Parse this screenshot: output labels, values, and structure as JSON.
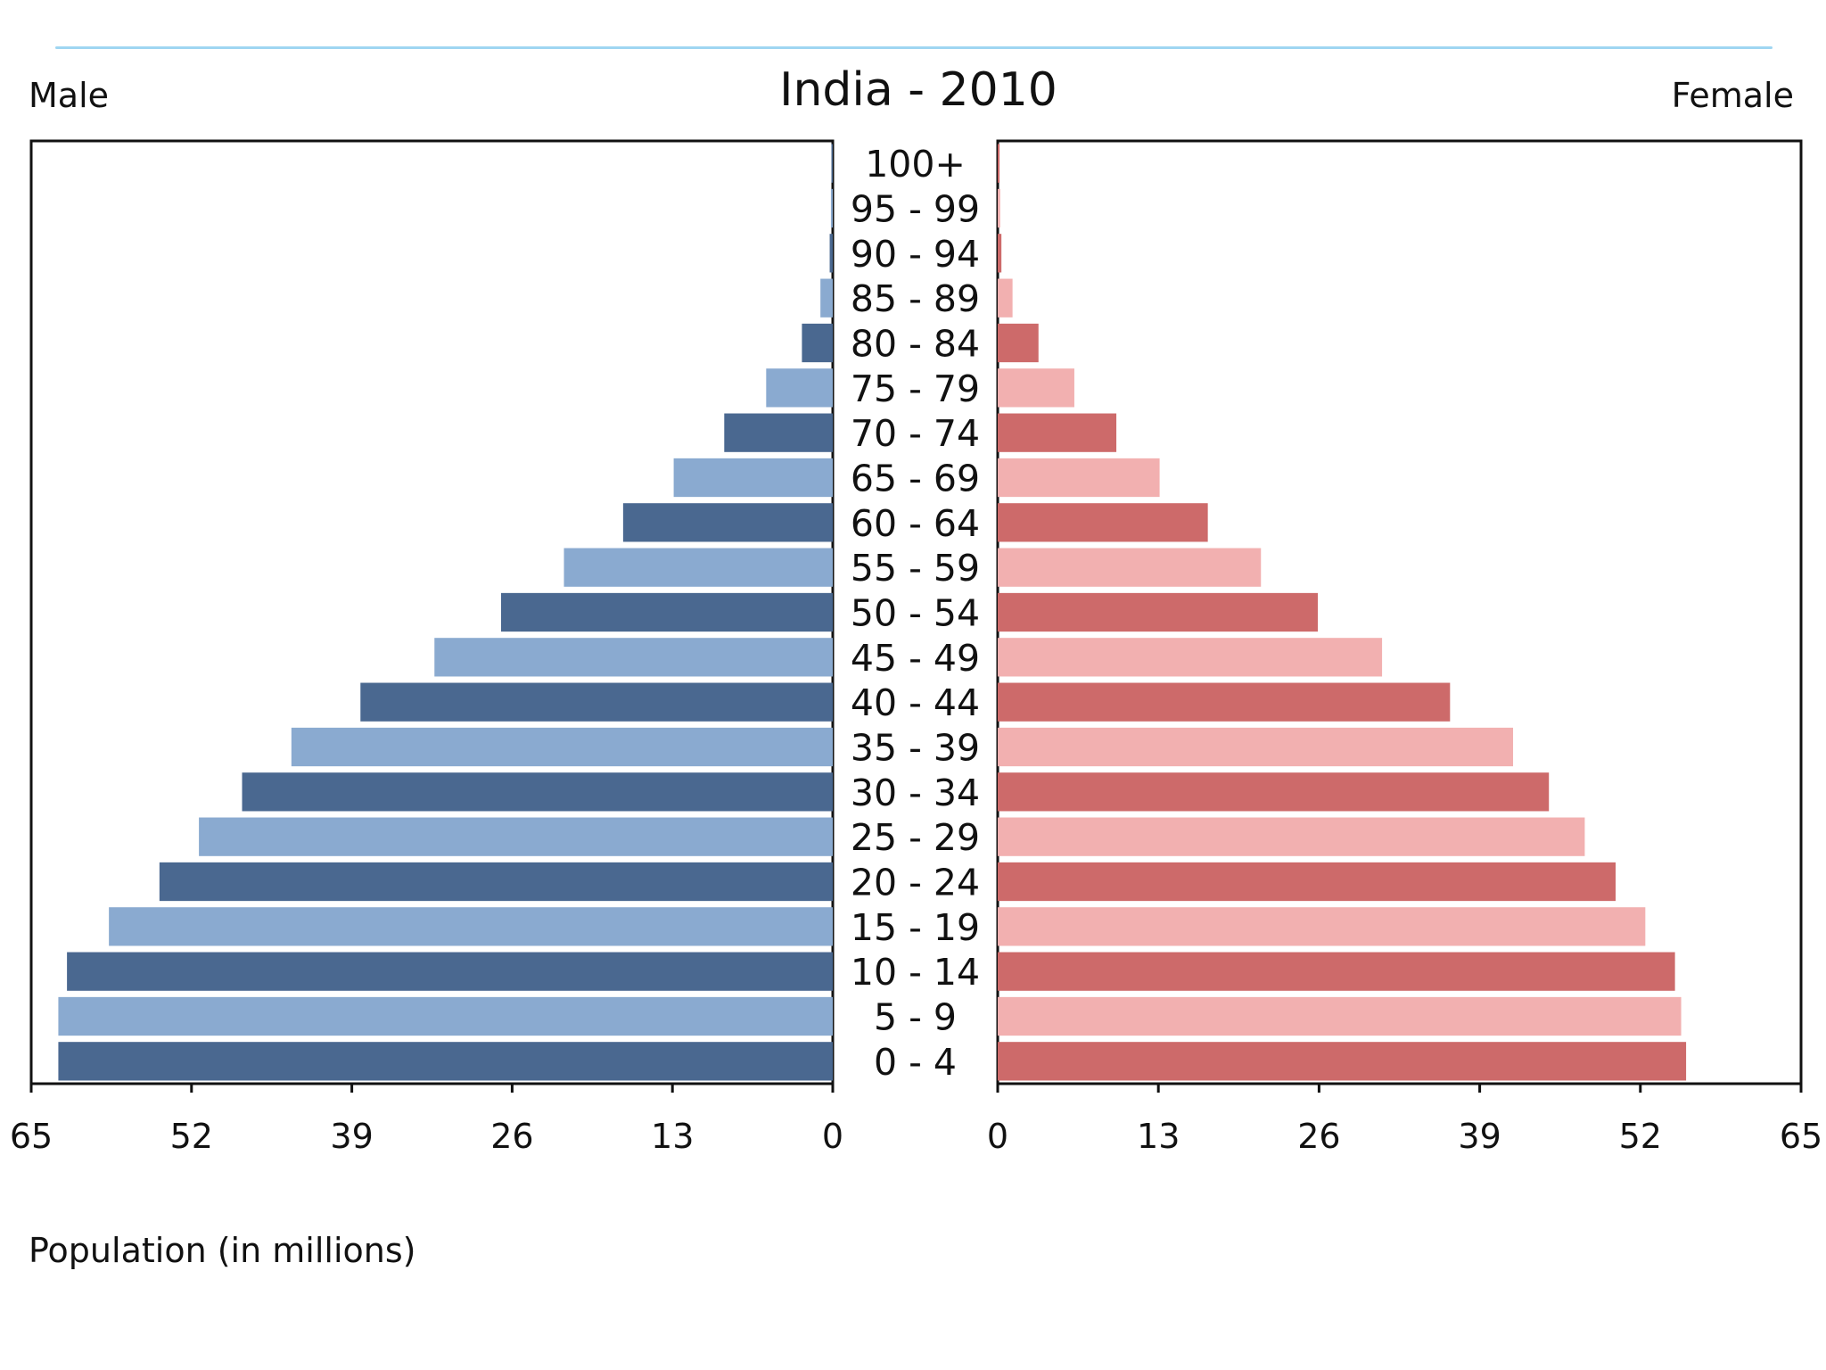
{
  "chart_data": {
    "type": "bar",
    "orientation": "horizontal-population-pyramid",
    "title": "India - 2010",
    "left_label": "Male",
    "right_label": "Female",
    "xlabel": "Population (in millions)",
    "xlim": [
      0,
      65
    ],
    "x_ticks": [
      0,
      13,
      26,
      39,
      52,
      65
    ],
    "categories": [
      "100+",
      "95 - 99",
      "90 - 94",
      "85 - 89",
      "80 - 84",
      "75 - 79",
      "70 - 74",
      "65 - 69",
      "60 - 64",
      "55 - 59",
      "50 - 54",
      "45 - 49",
      "40 - 44",
      "35 - 39",
      "30 - 34",
      "25 - 29",
      "20 - 24",
      "15 - 19",
      "10 - 14",
      "5 - 9",
      "0 - 4"
    ],
    "series": [
      {
        "name": "Male",
        "values": [
          0.1,
          0.15,
          0.25,
          1.0,
          2.5,
          5.4,
          8.8,
          12.9,
          17.0,
          21.8,
          26.9,
          32.3,
          38.3,
          43.9,
          47.9,
          51.4,
          54.6,
          58.7,
          62.1,
          62.8,
          62.8
        ]
      },
      {
        "name": "Female",
        "values": [
          0.15,
          0.2,
          0.3,
          1.2,
          3.3,
          6.2,
          9.6,
          13.1,
          17.0,
          21.3,
          25.9,
          31.1,
          36.6,
          41.7,
          44.6,
          47.5,
          50.0,
          52.4,
          54.8,
          55.3,
          55.7
        ]
      }
    ],
    "colors": {
      "male_dark": "#4a6890",
      "male_light": "#8aaad0",
      "female_dark": "#cd6a6a",
      "female_light": "#f2b0b0",
      "frame": "#111111",
      "top_rule": "#9fd6f2"
    },
    "grid": false
  }
}
